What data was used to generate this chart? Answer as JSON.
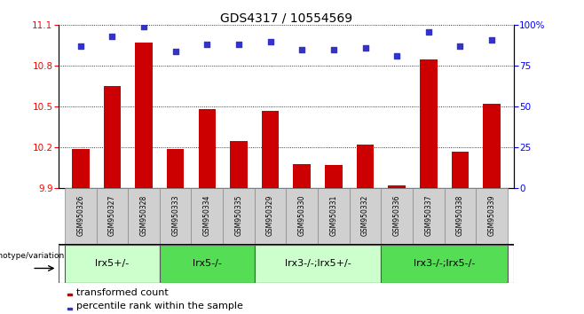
{
  "title": "GDS4317 / 10554569",
  "samples": [
    "GSM950326",
    "GSM950327",
    "GSM950328",
    "GSM950333",
    "GSM950334",
    "GSM950335",
    "GSM950329",
    "GSM950330",
    "GSM950331",
    "GSM950332",
    "GSM950336",
    "GSM950337",
    "GSM950338",
    "GSM950339"
  ],
  "bar_values": [
    10.19,
    10.65,
    10.97,
    10.19,
    10.48,
    10.25,
    10.47,
    10.08,
    10.07,
    10.22,
    9.92,
    10.85,
    10.17,
    10.52
  ],
  "dot_values": [
    87,
    93,
    99,
    84,
    88,
    88,
    90,
    85,
    85,
    86,
    81,
    96,
    87,
    91
  ],
  "ylim_left": [
    9.9,
    11.1
  ],
  "ylim_right": [
    0,
    100
  ],
  "yticks_left": [
    9.9,
    10.2,
    10.5,
    10.8,
    11.1
  ],
  "yticks_right": [
    0,
    25,
    50,
    75,
    100
  ],
  "bar_color": "#cc0000",
  "dot_color": "#3333cc",
  "groups": [
    {
      "label": "lrx5+/-",
      "start": 0,
      "end": 3,
      "color": "#ccffcc"
    },
    {
      "label": "lrx5-/-",
      "start": 3,
      "end": 6,
      "color": "#55dd55"
    },
    {
      "label": "lrx3-/-;lrx5+/-",
      "start": 6,
      "end": 10,
      "color": "#ccffcc"
    },
    {
      "label": "lrx3-/-;lrx5-/-",
      "start": 10,
      "end": 14,
      "color": "#55dd55"
    }
  ],
  "legend_bar_label": "transformed count",
  "legend_dot_label": "percentile rank within the sample",
  "genotype_label": "genotype/variation",
  "baseline": 9.9,
  "title_fontsize": 10,
  "tick_fontsize": 7.5,
  "sample_fontsize": 5.5,
  "group_fontsize": 8,
  "legend_fontsize": 8
}
